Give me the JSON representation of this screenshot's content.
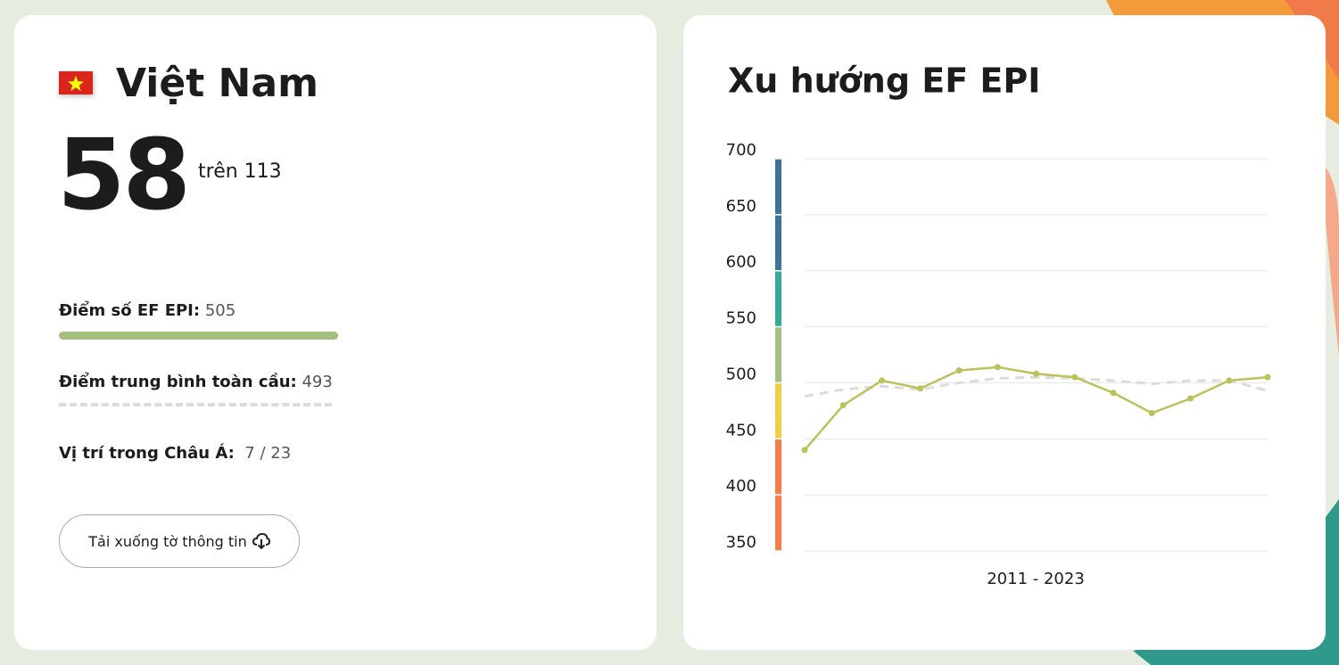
{
  "country": {
    "name": "Việt Nam",
    "rank": 58,
    "rank_of": "trên 113"
  },
  "score": {
    "label": "Điểm số EF EPI:",
    "value": 505
  },
  "global": {
    "label": "Điểm trung bình toàn cầu:",
    "value": 493
  },
  "region": {
    "label": "Vị trí trong Châu Á:",
    "value": "7 / 23"
  },
  "button": "Tải xuống tờ thông tin",
  "chart_data": {
    "type": "line",
    "title": "Xu hướng EF EPI",
    "xlabel": "2011 - 2023",
    "categories": [
      null,
      null,
      null,
      null,
      null,
      null,
      null,
      null,
      null,
      null,
      null,
      null,
      null
    ],
    "series": [
      {
        "color": "#bcc15c",
        "values": [
          440,
          480,
          502,
          495,
          511,
          514,
          508,
          505,
          491,
          473,
          486,
          502,
          505
        ]
      },
      {
        "color": "#dcdcdc",
        "dashed": true,
        "values": [
          488,
          494,
          497,
          494,
          500,
          504,
          505,
          504,
          502,
          499,
          502,
          502,
          493
        ]
      }
    ],
    "bands": [
      {
        "from": 350,
        "to": 450,
        "color": "#f47d4a"
      },
      {
        "from": 450,
        "to": 500,
        "color": "#f0cf44"
      },
      {
        "from": 500,
        "to": 550,
        "color": "#a6bf82"
      },
      {
        "from": 550,
        "to": 600,
        "color": "#36aa97"
      },
      {
        "from": 600,
        "to": 700,
        "color": "#3d7397"
      }
    ],
    "ylim": [
      350,
      700
    ],
    "yticks": [
      350,
      400,
      450,
      500,
      550,
      600,
      650,
      700
    ],
    "grid": true
  }
}
